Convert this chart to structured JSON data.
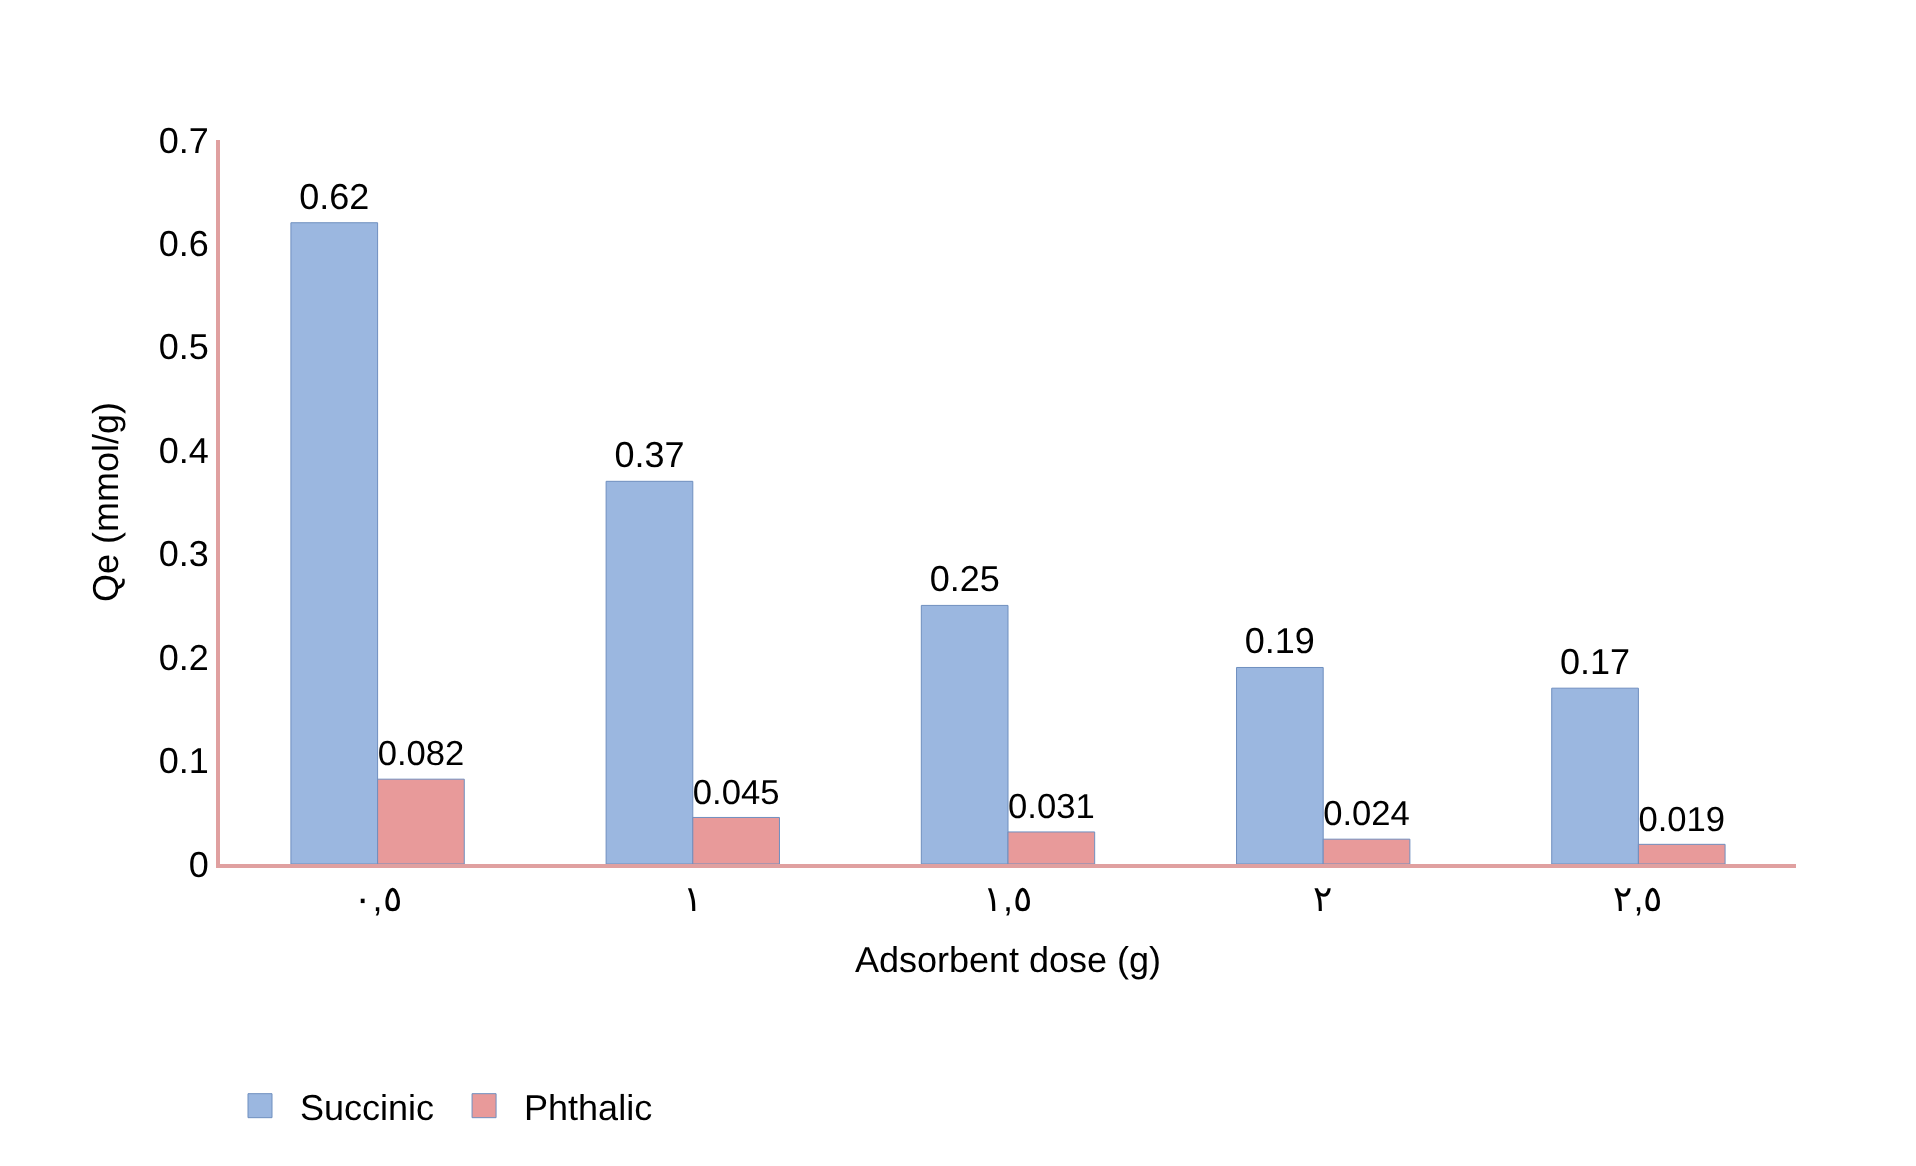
{
  "chart_data": {
    "type": "bar",
    "xlabel": "Adsorbent dose (g)",
    "ylabel": "Qe (mmol/g)",
    "categories": [
      "٠,٥",
      "١",
      "١,٥",
      "٢",
      "٢,٥"
    ],
    "series": [
      {
        "name": "Succinic",
        "color": "#9bb7e0",
        "values": [
          0.62,
          0.37,
          0.25,
          0.19,
          0.17
        ]
      },
      {
        "name": "Phthalic",
        "color": "#e89a9a",
        "values": [
          0.082,
          0.045,
          0.031,
          0.024,
          0.019
        ]
      }
    ],
    "ylim": [
      0,
      0.7
    ],
    "yticks": [
      0,
      0.1,
      0.2,
      0.3,
      0.4,
      0.5,
      0.6,
      0.7
    ],
    "data_labels": true,
    "grid": false,
    "legend": "bottom left"
  }
}
